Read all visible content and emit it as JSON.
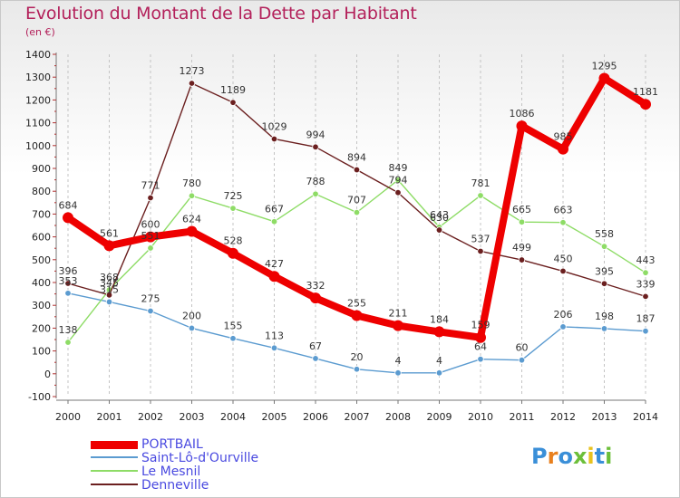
{
  "header": {
    "title": "Evolution du Montant de la Dette par Habitant",
    "subtitle": "(en €)"
  },
  "logo": {
    "letters": [
      "P",
      "r",
      "o",
      "x",
      "i",
      "t",
      "i"
    ],
    "colors": [
      "#3a8fd8",
      "#e8801e",
      "#3a8fd8",
      "#6cbf3a",
      "#e8c21e",
      "#3a8fd8",
      "#6cbf3a"
    ]
  },
  "chart_data": {
    "type": "line",
    "title": "Evolution du Montant de la Dette par Habitant",
    "subtitle": "(en €)",
    "xlabel": "",
    "ylabel": "",
    "x": [
      "2000",
      "2001",
      "2002",
      "2003",
      "2004",
      "2005",
      "2006",
      "2007",
      "2008",
      "2009",
      "2010",
      "2011",
      "2012",
      "2013",
      "2014"
    ],
    "ylim": [
      -100,
      1400
    ],
    "yticks": [
      -100,
      0,
      100,
      200,
      300,
      400,
      500,
      600,
      700,
      800,
      900,
      1000,
      1100,
      1200,
      1300,
      1400
    ],
    "grid": "vertical dashed",
    "legend_position": "bottom-left",
    "series": [
      {
        "name": "PORTBAIL",
        "color": "#ee0000",
        "values": [
          684,
          561,
          600,
          624,
          528,
          427,
          332,
          255,
          211,
          184,
          159,
          1086,
          985,
          1295,
          1181
        ]
      },
      {
        "name": "Saint-Lô-d'Ourville",
        "color": "#5b9bd0",
        "values": [
          353,
          315,
          275,
          200,
          155,
          113,
          67,
          20,
          4,
          4,
          64,
          60,
          206,
          198,
          187
        ]
      },
      {
        "name": "Le Mesnil",
        "color": "#8edc66",
        "values": [
          138,
          368,
          551,
          780,
          725,
          667,
          788,
          707,
          849,
          643,
          781,
          665,
          663,
          558,
          443
        ]
      },
      {
        "name": "Denneville",
        "color": "#6b1f1f",
        "values": [
          396,
          345,
          771,
          1273,
          1189,
          1029,
          994,
          894,
          794,
          630,
          537,
          499,
          450,
          395,
          339
        ]
      }
    ]
  }
}
